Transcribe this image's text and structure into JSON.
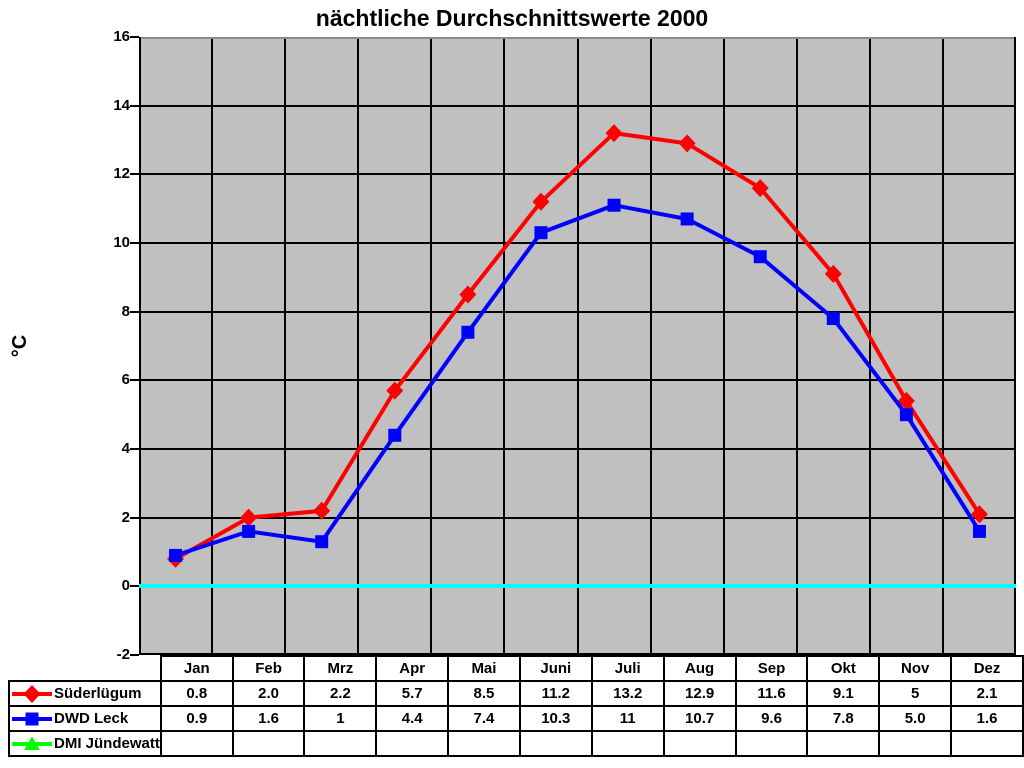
{
  "chart_data": {
    "type": "line",
    "title": "nächtliche Durchschnittswerte 2000",
    "ylabel": "°C",
    "categories": [
      "Jan",
      "Feb",
      "Mrz",
      "Apr",
      "Mai",
      "Juni",
      "Juli",
      "Aug",
      "Sep",
      "Okt",
      "Nov",
      "Dez"
    ],
    "series": [
      {
        "name": "Süderlügum",
        "color": "#ff0000",
        "marker": "diamond",
        "values": [
          0.8,
          2.0,
          2.2,
          5.7,
          8.5,
          11.2,
          13.2,
          12.9,
          11.6,
          9.1,
          5.4,
          2.1
        ]
      },
      {
        "name": "DWD Leck",
        "color": "#0000ff",
        "marker": "square",
        "values": [
          0.9,
          1.6,
          1.3,
          4.4,
          7.4,
          10.3,
          11.1,
          10.7,
          9.6,
          7.8,
          5.0,
          1.6
        ]
      },
      {
        "name": "DMI Jündewatt",
        "color": "#00ff00",
        "marker": "triangle",
        "values": []
      }
    ],
    "ylim": [
      -2,
      16
    ],
    "ytick_step": 2,
    "ytick_labels": [
      "16",
      "14",
      "12",
      "10",
      "8",
      "6",
      "4",
      "2",
      "0",
      "-2"
    ],
    "grid": true,
    "plot_bg": "#c0c0c0",
    "gridline_color": "#000000",
    "plot_top_edge_color": "#8a8a8a",
    "zero_line_color": "#00ffff",
    "legend_position": "table-left"
  },
  "table": {
    "columns": [
      "Jan",
      "Feb",
      "Mrz",
      "Apr",
      "Mai",
      "Juni",
      "Juli",
      "Aug",
      "Sep",
      "Okt",
      "Nov",
      "Dez"
    ],
    "rows": [
      {
        "label": "Süderlügum",
        "values": [
          "0.8",
          "2.0",
          "2.2",
          "5.7",
          "8.5",
          "11.2",
          "13.2",
          "12.9",
          "11.6",
          "9.1",
          "5",
          "2.1"
        ]
      },
      {
        "label": "DWD Leck",
        "values": [
          "0.9",
          "1.6",
          "1",
          "4.4",
          "7.4",
          "10.3",
          "11",
          "10.7",
          "9.6",
          "7.8",
          "5.0",
          "1.6"
        ]
      },
      {
        "label": "DMI Jündewatt",
        "values": [
          "",
          "",
          "",
          "",
          "",
          "",
          "",
          "",
          "",
          "",
          "",
          ""
        ]
      }
    ]
  }
}
